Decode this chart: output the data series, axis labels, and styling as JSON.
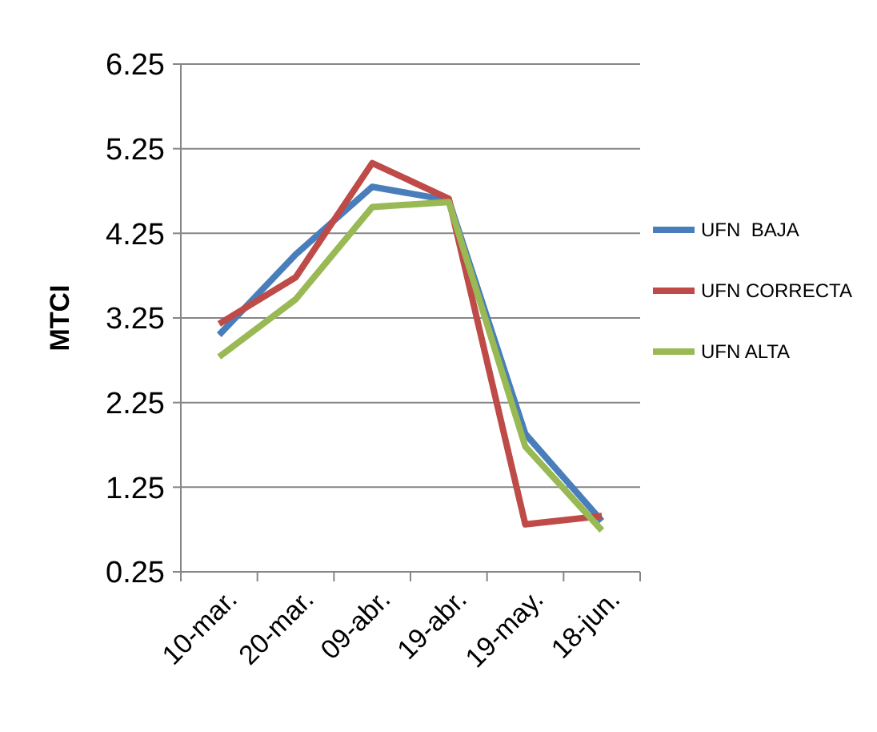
{
  "chart_data": {
    "type": "line",
    "ylabel": "MTCI",
    "categories": [
      "10-mar.",
      "20-mar.",
      "09-abr.",
      "19-abr.",
      "19-may.",
      "18-jun."
    ],
    "series": [
      {
        "name": "UFN  BAJA",
        "color": "#4a7ebb",
        "values": [
          3.05,
          4.0,
          4.8,
          4.64,
          1.88,
          0.85
        ]
      },
      {
        "name": "UFN CORRECTA",
        "color": "#be4b48",
        "values": [
          3.18,
          3.73,
          5.08,
          4.66,
          0.81,
          0.91
        ]
      },
      {
        "name": "UFN ALTA",
        "color": "#98b954",
        "values": [
          2.79,
          3.47,
          4.56,
          4.62,
          1.73,
          0.74
        ]
      }
    ],
    "ylim": [
      0.25,
      6.25
    ],
    "yticks": [
      0.25,
      1.25,
      2.25,
      3.25,
      4.25,
      5.25,
      6.25
    ],
    "grid": "y",
    "legend": "right",
    "marker": "none",
    "line_style": "solid"
  }
}
